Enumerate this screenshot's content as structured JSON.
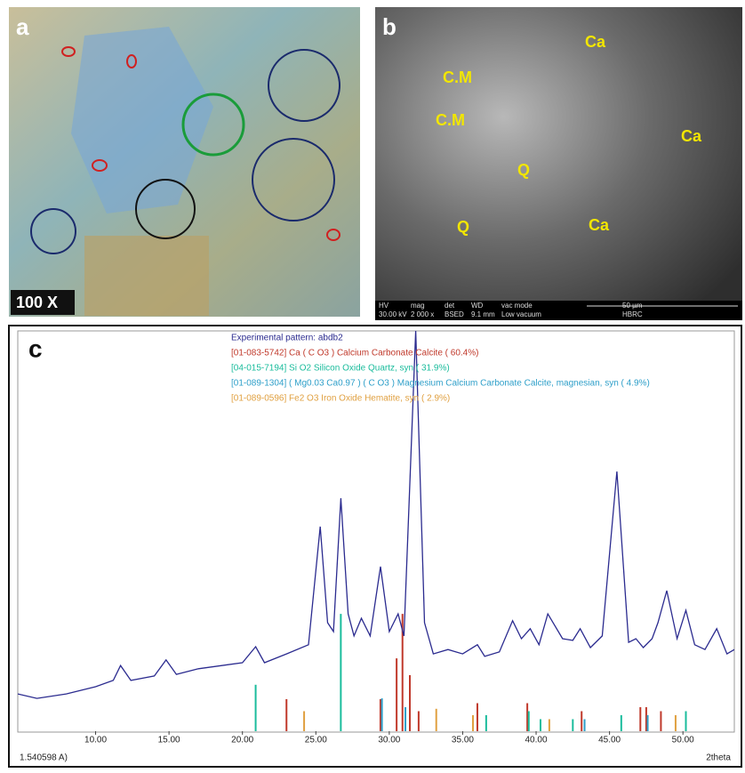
{
  "panel_a": {
    "label": "a",
    "magnification": "100 X"
  },
  "panel_b": {
    "label": "b",
    "annotations": [
      "C.M",
      "C.M",
      "Q",
      "Q",
      "Ca",
      "Ca",
      "Ca"
    ],
    "info_headers": [
      "HV",
      "mag",
      "det",
      "WD",
      "vac mode",
      "50 µm"
    ],
    "info_values": [
      "30.00 kV",
      "2 000 x",
      "BSED",
      "9.1 mm",
      "Low vacuum",
      "HBRC"
    ]
  },
  "chart_data": {
    "type": "line",
    "panel_label": "c",
    "legend_title": "Experimental pattern: abdb2",
    "x_axis_label": "2theta",
    "x_axis_start_label": "1.540598 A)",
    "xlim": [
      4.7,
      53.5
    ],
    "ylim": [
      0,
      100
    ],
    "xticks": [
      {
        "value": 10,
        "label": "10.00"
      },
      {
        "value": 15,
        "label": "15.00"
      },
      {
        "value": 20,
        "label": "20.00"
      },
      {
        "value": 25,
        "label": "25.00"
      },
      {
        "value": 30,
        "label": "30.00"
      },
      {
        "value": 35,
        "label": "35.00"
      },
      {
        "value": 40,
        "label": "40.00"
      },
      {
        "value": 45,
        "label": "45.00"
      },
      {
        "value": 50,
        "label": "50.00"
      }
    ],
    "pattern": {
      "name": "Experimental pattern: abdb2",
      "color": "#2b2b8f",
      "x": [
        4.7,
        6,
        8,
        10,
        11.2,
        11.7,
        12.4,
        14,
        14.8,
        15.5,
        17,
        20,
        20.9,
        21.5,
        23,
        24.5,
        25.3,
        25.8,
        26.2,
        26.7,
        27.2,
        27.6,
        28.1,
        28.7,
        29.4,
        30,
        30.6,
        31,
        31.8,
        32.4,
        33,
        34,
        35,
        36,
        36.5,
        37.5,
        38.4,
        39,
        39.6,
        40.2,
        40.8,
        41.8,
        42.5,
        43,
        43.7,
        44.5,
        45.5,
        46.3,
        46.8,
        47.3,
        47.9,
        48.3,
        48.9,
        49.6,
        50.2,
        50.8,
        51.5,
        52.3,
        53,
        53.5
      ],
      "values": [
        9.3,
        8.2,
        9.3,
        11.1,
        12.7,
        16.4,
        12.7,
        13.8,
        17.8,
        14.2,
        15.6,
        17.1,
        21.1,
        17.1,
        19.3,
        21.6,
        51.1,
        27.1,
        24.9,
        58.2,
        29.3,
        23.8,
        28.2,
        23.8,
        41.1,
        24.9,
        29.3,
        23.8,
        100,
        27.1,
        19.3,
        20.4,
        19.3,
        21.6,
        18.7,
        19.8,
        27.6,
        23.1,
        25.6,
        21.6,
        29.3,
        23.1,
        22.7,
        25.6,
        20.9,
        23.8,
        64.9,
        22.2,
        23.1,
        20.9,
        23.1,
        27.1,
        35.1,
        23.1,
        30.2,
        21.6,
        20.4,
        25.6,
        19.3,
        20.4
      ]
    },
    "series": [
      {
        "name": "[01-083-5742] Ca ( C O3 ) Calcium Carbonate Calcite ( 60.4%)",
        "color": "#c0392b",
        "x": [
          23.0,
          29.4,
          30.5,
          30.9,
          31.4,
          32.0,
          36.0,
          39.4,
          43.1,
          47.1,
          47.5,
          48.5
        ],
        "values": [
          8,
          8,
          18.2,
          29.3,
          14,
          5,
          7,
          7,
          5,
          6,
          6,
          5
        ]
      },
      {
        "name": "[04-015-7194] Si O2 Silicon Oxide Quartz, syn ( 31.9%)",
        "color": "#1abc9c",
        "x": [
          20.9,
          26.7,
          36.6,
          39.5,
          40.3,
          42.5,
          45.8,
          50.2
        ],
        "values": [
          11.6,
          29.3,
          4,
          5,
          3,
          3,
          4,
          5
        ]
      },
      {
        "name": "[01-089-1304] ( Mg0.03 Ca0.97 ) ( C O3 ) Magnesium Calcium Carbonate Calcite, magnesian, syn ( 4.9%)",
        "color": "#2e9fc9",
        "x": [
          29.5,
          31.1,
          43.3,
          47.6
        ],
        "values": [
          8.2,
          6,
          3,
          4
        ]
      },
      {
        "name": "[01-089-0596] Fe2 O3 Iron Oxide Hematite, syn ( 2.9%)",
        "color": "#e0a040",
        "x": [
          24.2,
          33.2,
          35.7,
          40.9,
          49.5
        ],
        "values": [
          5,
          5.6,
          4,
          3,
          4
        ]
      }
    ]
  }
}
